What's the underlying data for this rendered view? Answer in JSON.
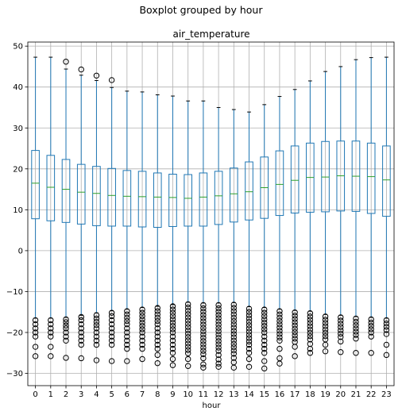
{
  "chart_data": {
    "type": "boxplot",
    "suptitle": "Boxplot grouped by hour",
    "title": "air_temperature",
    "xlabel": "hour",
    "ylabel": "",
    "categories": [
      "0",
      "1",
      "2",
      "3",
      "4",
      "5",
      "6",
      "7",
      "8",
      "9",
      "10",
      "11",
      "12",
      "13",
      "14",
      "15",
      "16",
      "17",
      "18",
      "19",
      "20",
      "21",
      "22",
      "23"
    ],
    "ylim": [
      -33,
      51
    ],
    "yticks": [
      -30,
      -20,
      -10,
      0,
      10,
      20,
      30,
      40,
      50
    ],
    "grid": true,
    "boxes": [
      {
        "q1": 7.8,
        "median": 16.5,
        "q3": 24.5,
        "whislo": -16.5,
        "whishi": 47.3,
        "fliers": [
          -17,
          -18,
          -19,
          -20,
          -21,
          -23.5,
          -25.8
        ]
      },
      {
        "q1": 7.3,
        "median": 15.5,
        "q3": 23.3,
        "whislo": -16.5,
        "whishi": 47.3,
        "fliers": [
          -17,
          -18,
          -19,
          -20,
          -21,
          -23.5,
          -25.8
        ]
      },
      {
        "q1": 6.9,
        "median": 15.0,
        "q3": 22.3,
        "whislo": -16.3,
        "whishi": 44.4,
        "fliers": [
          46.2,
          -16.8,
          -17.5,
          -18.3,
          -19,
          -20,
          -21,
          -22,
          -26.2
        ]
      },
      {
        "q1": 6.5,
        "median": 14.3,
        "q3": 21.1,
        "whislo": -15.8,
        "whishi": 42.9,
        "fliers": [
          44.3,
          -16.2,
          -17,
          -18,
          -19,
          -20,
          -21,
          -22,
          -23,
          -26.3
        ]
      },
      {
        "q1": 6.1,
        "median": 14.0,
        "q3": 20.6,
        "whislo": -15.2,
        "whishi": 41.6,
        "fliers": [
          42.8,
          -15.8,
          -16.6,
          -17.4,
          -18.2,
          -19,
          -20,
          -21,
          -22,
          -23,
          -26.8
        ]
      },
      {
        "q1": 6.0,
        "median": 13.5,
        "q3": 20.1,
        "whislo": -14.7,
        "whishi": 39.9,
        "fliers": [
          41.7,
          -15.2,
          -16,
          -17,
          -18,
          -19,
          -20,
          -21,
          -22,
          -23,
          -27
        ]
      },
      {
        "q1": 6.0,
        "median": 13.3,
        "q3": 19.6,
        "whislo": -14.3,
        "whishi": 39.0,
        "fliers": [
          -14.8,
          -15.6,
          -16.4,
          -17.2,
          -18,
          -19,
          -20,
          -21,
          -22,
          -23,
          -24,
          -27
        ]
      },
      {
        "q1": 5.8,
        "median": 13.2,
        "q3": 19.4,
        "whislo": -13.9,
        "whishi": 38.8,
        "fliers": [
          -14.4,
          -15.2,
          -16,
          -16.8,
          -17.6,
          -18.4,
          -19.2,
          -20,
          -21,
          -22,
          -23,
          -24,
          -26.5
        ]
      },
      {
        "q1": 5.7,
        "median": 13.1,
        "q3": 19.0,
        "whislo": -13.6,
        "whishi": 38.1,
        "fliers": [
          -14,
          -14.8,
          -15.6,
          -16.4,
          -17.2,
          -18,
          -19,
          -20,
          -21,
          -22,
          -23,
          -24,
          -25.5,
          -27.5
        ]
      },
      {
        "q1": 5.9,
        "median": 13.0,
        "q3": 18.7,
        "whislo": -13.2,
        "whishi": 37.8,
        "fliers": [
          -13.6,
          -14.4,
          -15.2,
          -16,
          -16.8,
          -17.6,
          -18.4,
          -19.2,
          -20,
          -21,
          -22,
          -23,
          -24,
          -25,
          -26.5,
          -28
        ]
      },
      {
        "q1": 6.0,
        "median": 12.8,
        "q3": 18.6,
        "whislo": -12.6,
        "whishi": 36.6,
        "fliers": [
          -13.1,
          -13.9,
          -14.7,
          -15.5,
          -16.3,
          -17.1,
          -17.9,
          -18.7,
          -19.5,
          -20.3,
          -21.1,
          -21.9,
          -22.7,
          -23.5,
          -24.3,
          -25.1,
          -26.5,
          -28.2
        ]
      },
      {
        "q1": 6.0,
        "median": 13.1,
        "q3": 19.0,
        "whislo": -12.8,
        "whishi": 36.6,
        "fliers": [
          -13.3,
          -14.1,
          -14.9,
          -15.7,
          -16.5,
          -17.3,
          -18.1,
          -18.9,
          -19.7,
          -20.5,
          -21.3,
          -22.1,
          -22.9,
          -23.7,
          -24.5,
          -25.3,
          -26.3,
          -27.8,
          -28.6
        ]
      },
      {
        "q1": 6.4,
        "median": 13.4,
        "q3": 19.4,
        "whislo": -12.8,
        "whishi": 35.0,
        "fliers": [
          -13.3,
          -14.1,
          -14.9,
          -15.7,
          -16.5,
          -17.3,
          -18.1,
          -18.9,
          -19.7,
          -20.5,
          -21.3,
          -22.1,
          -22.9,
          -23.7,
          -24.5,
          -25.5,
          -26.6,
          -27.6,
          -28.4
        ]
      },
      {
        "q1": 7.0,
        "median": 13.9,
        "q3": 20.2,
        "whislo": -12.7,
        "whishi": 34.5,
        "fliers": [
          -13.2,
          -14,
          -14.8,
          -15.6,
          -16.4,
          -17.2,
          -18,
          -18.8,
          -19.6,
          -20.4,
          -21.2,
          -22,
          -22.8,
          -23.6,
          -24.4,
          -25.2,
          -26.2,
          -27.3,
          -28.6
        ]
      },
      {
        "q1": 7.5,
        "median": 14.4,
        "q3": 21.7,
        "whislo": -13.7,
        "whishi": 33.9,
        "fliers": [
          -14.2,
          -15,
          -15.8,
          -16.6,
          -17.4,
          -18.2,
          -19,
          -19.8,
          -20.6,
          -21.4,
          -22.2,
          -23,
          -24,
          -25,
          -26.5,
          -28.4
        ]
      },
      {
        "q1": 7.9,
        "median": 15.4,
        "q3": 22.9,
        "whislo": -13.9,
        "whishi": 35.7,
        "fliers": [
          -14.4,
          -15.2,
          -16,
          -16.8,
          -17.6,
          -18.4,
          -19.2,
          -20,
          -21,
          -22,
          -23,
          -24,
          -25,
          -27,
          -28.8
        ]
      },
      {
        "q1": 8.6,
        "median": 16.2,
        "q3": 24.4,
        "whislo": -14.3,
        "whishi": 37.7,
        "fliers": [
          -14.8,
          -15.6,
          -16.4,
          -17.2,
          -18,
          -18.8,
          -19.6,
          -20.4,
          -21.2,
          -22,
          -24,
          -26.3,
          -27.6
        ]
      },
      {
        "q1": 9.2,
        "median": 17.2,
        "q3": 25.6,
        "whislo": -14.6,
        "whishi": 39.4,
        "fliers": [
          -15.1,
          -15.9,
          -16.7,
          -17.5,
          -18.3,
          -19.1,
          -19.9,
          -20.7,
          -21.5,
          -22.3,
          -23.5,
          -25.8
        ]
      },
      {
        "q1": 9.4,
        "median": 17.9,
        "q3": 26.3,
        "whislo": -14.8,
        "whishi": 41.5,
        "fliers": [
          -15.3,
          -16.1,
          -16.9,
          -17.7,
          -18.5,
          -19.3,
          -20.1,
          -20.9,
          -21.7,
          -22.8,
          -24,
          -25
        ]
      },
      {
        "q1": 9.5,
        "median": 18.0,
        "q3": 26.7,
        "whislo": -15.6,
        "whishi": 43.8,
        "fliers": [
          -16.1,
          -16.9,
          -17.7,
          -18.5,
          -19.3,
          -20.1,
          -20.9,
          -21.7,
          -23,
          -24.6
        ]
      },
      {
        "q1": 9.7,
        "median": 18.3,
        "q3": 26.8,
        "whislo": -15.8,
        "whishi": 45.0,
        "fliers": [
          -16.3,
          -17.1,
          -17.9,
          -18.7,
          -19.5,
          -20.3,
          -21.1,
          -22.2,
          -24.8
        ]
      },
      {
        "q1": 9.6,
        "median": 18.2,
        "q3": 26.8,
        "whislo": -16.1,
        "whishi": 46.7,
        "fliers": [
          -16.6,
          -17.4,
          -18.2,
          -19,
          -19.8,
          -20.6,
          -21.5,
          -25
        ]
      },
      {
        "q1": 9.1,
        "median": 18.1,
        "q3": 26.3,
        "whislo": -16.3,
        "whishi": 47.2,
        "fliers": [
          -16.8,
          -17.6,
          -18.4,
          -19.2,
          -20,
          -21,
          -25
        ]
      },
      {
        "q1": 8.4,
        "median": 17.3,
        "q3": 25.6,
        "whislo": -16.5,
        "whishi": 47.3,
        "fliers": [
          -17,
          -17.8,
          -18.6,
          -19.4,
          -20.4,
          -23,
          -25.5
        ]
      }
    ],
    "colors": {
      "box": "#1f77b4",
      "median": "#2ca02c",
      "grid": "#b0b0b0",
      "flier": "#000000"
    }
  }
}
